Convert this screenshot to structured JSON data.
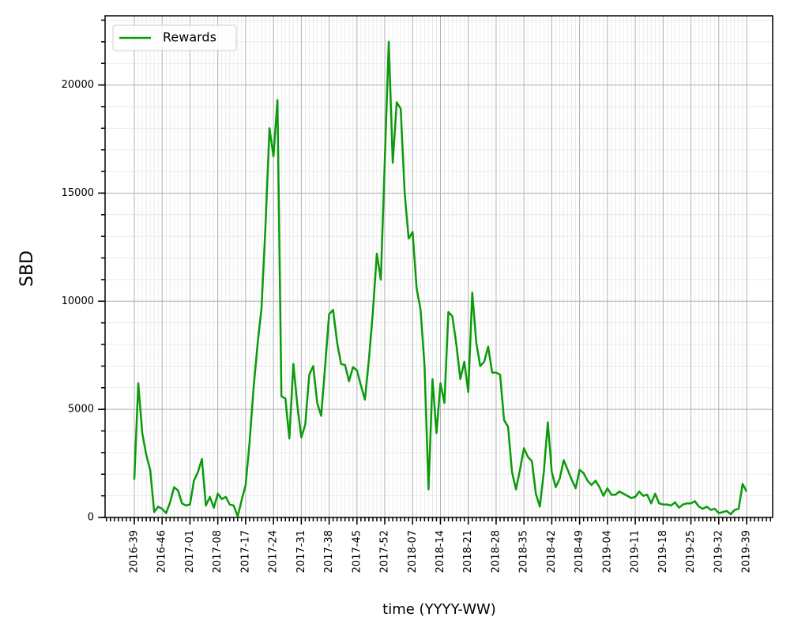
{
  "chart_data": {
    "type": "line",
    "ylabel": "SBD",
    "xlabel": "time (YYYY-WW)",
    "categories": [
      "2016-39",
      null,
      null,
      null,
      null,
      null,
      null,
      "2016-46",
      null,
      null,
      null,
      null,
      null,
      null,
      "2017-01",
      null,
      null,
      null,
      null,
      null,
      null,
      "2017-08",
      null,
      null,
      null,
      null,
      null,
      null,
      "2017-17",
      null,
      null,
      null,
      null,
      null,
      null,
      "2017-24",
      null,
      null,
      null,
      null,
      null,
      null,
      "2017-31",
      null,
      null,
      null,
      null,
      null,
      null,
      "2017-38",
      null,
      null,
      null,
      null,
      null,
      null,
      "2017-45",
      null,
      null,
      null,
      null,
      null,
      null,
      "2017-52",
      null,
      null,
      null,
      null,
      null,
      null,
      "2018-07",
      null,
      null,
      null,
      null,
      null,
      null,
      "2018-14",
      null,
      null,
      null,
      null,
      null,
      null,
      "2018-21",
      null,
      null,
      null,
      null,
      null,
      null,
      "2018-28",
      null,
      null,
      null,
      null,
      null,
      null,
      "2018-35",
      null,
      null,
      null,
      null,
      null,
      null,
      "2018-42",
      null,
      null,
      null,
      null,
      null,
      null,
      "2018-49",
      null,
      null,
      null,
      null,
      null,
      null,
      "2019-04",
      null,
      null,
      null,
      null,
      null,
      null,
      "2019-11",
      null,
      null,
      null,
      null,
      null,
      null,
      "2019-18",
      null,
      null,
      null,
      null,
      null,
      null,
      "2019-25",
      null,
      null,
      null,
      null,
      null,
      null,
      "2019-32",
      null,
      null,
      null,
      null,
      null,
      null,
      "2019-39"
    ],
    "series": [
      {
        "name": "Rewards",
        "color": "#0a9a0a",
        "values": [
          1750,
          6200,
          3900,
          2900,
          2200,
          250,
          500,
          400,
          200,
          700,
          1400,
          1250,
          650,
          550,
          600,
          1700,
          2100,
          2700,
          550,
          950,
          450,
          1100,
          850,
          950,
          600,
          550,
          50,
          800,
          1500,
          3500,
          6000,
          8000,
          9700,
          13500,
          18000,
          16700,
          19300,
          5600,
          5500,
          3650,
          7100,
          5200,
          3700,
          4300,
          6600,
          7000,
          5300,
          4700,
          7000,
          9400,
          9600,
          8100,
          7100,
          7050,
          6300,
          6950,
          6800,
          6100,
          5450,
          7300,
          9500,
          12200,
          11000,
          16500,
          22000,
          16400,
          19200,
          18900,
          15000,
          12900,
          13200,
          10600,
          9600,
          7000,
          1300,
          6400,
          3900,
          6200,
          5300,
          9500,
          9300,
          8000,
          6400,
          7200,
          5800,
          10400,
          8100,
          7000,
          7200,
          7900,
          6700,
          6700,
          6600,
          4500,
          4200,
          2100,
          1300,
          2200,
          3200,
          2800,
          2600,
          1100,
          500,
          2100,
          4400,
          2100,
          1400,
          1800,
          2650,
          2200,
          1750,
          1350,
          2200,
          2050,
          1700,
          1500,
          1700,
          1400,
          1000,
          1350,
          1050,
          1050,
          1200,
          1100,
          1000,
          900,
          950,
          1200,
          1000,
          1050,
          650,
          1100,
          650,
          600,
          600,
          550,
          700,
          450,
          600,
          650,
          650,
          750,
          500,
          400,
          500,
          350,
          400,
          200,
          250,
          300,
          150,
          350,
          400,
          1550,
          1200
        ]
      }
    ],
    "ylim": [
      0,
      23200
    ],
    "yticks": [
      0,
      5000,
      10000,
      15000,
      20000
    ],
    "grid": true,
    "legend": "upper left"
  }
}
